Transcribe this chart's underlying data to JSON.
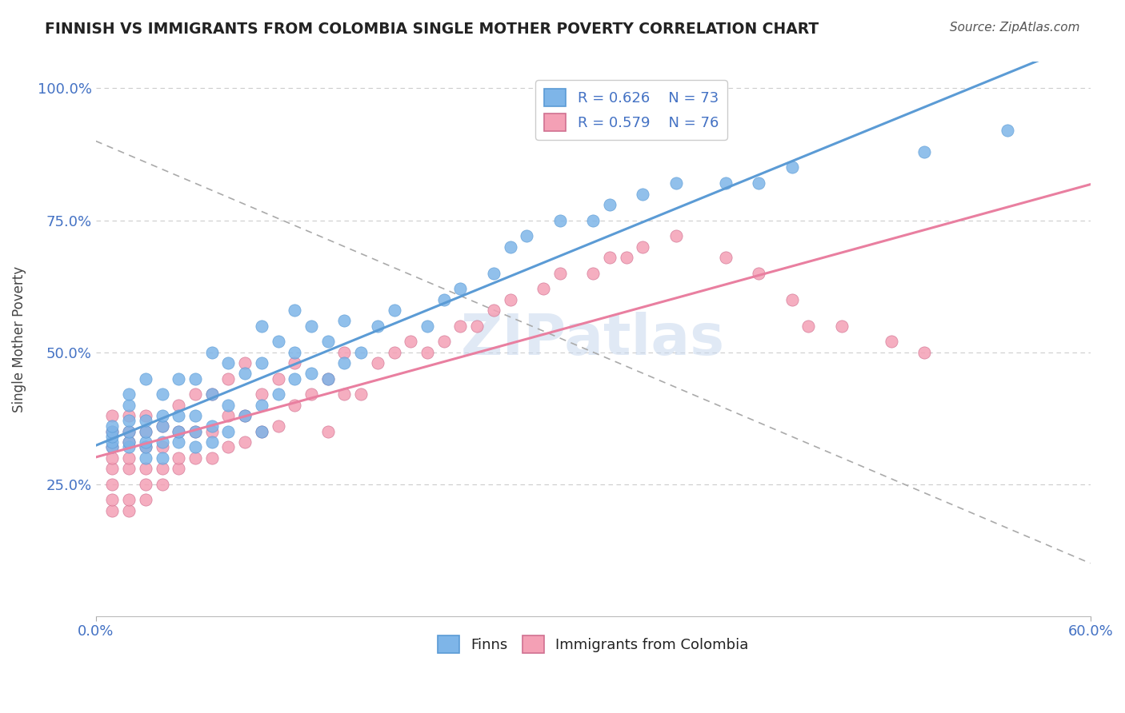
{
  "title": "FINNISH VS IMMIGRANTS FROM COLOMBIA SINGLE MOTHER POVERTY CORRELATION CHART",
  "source": "Source: ZipAtlas.com",
  "xlabel": "",
  "ylabel": "Single Mother Poverty",
  "xlim": [
    0.0,
    0.6
  ],
  "ylim": [
    0.0,
    1.05
  ],
  "xtick_labels": [
    "0.0%",
    "60.0%"
  ],
  "ytick_labels": [
    "25.0%",
    "50.0%",
    "75.0%",
    "100.0%"
  ],
  "ytick_values": [
    0.25,
    0.5,
    0.75,
    1.0
  ],
  "legend_R_finns": "R = 0.626",
  "legend_N_finns": "N = 73",
  "legend_R_colombia": "R = 0.579",
  "legend_N_colombia": "N = 76",
  "color_finns": "#7EB5E8",
  "color_colombia": "#F4A0B5",
  "color_finns_line": "#5B9BD5",
  "color_colombia_line": "#E97FA0",
  "color_dashed": "#AAAAAA",
  "watermark": "ZIPatlas",
  "finns_x": [
    0.01,
    0.01,
    0.01,
    0.01,
    0.01,
    0.02,
    0.02,
    0.02,
    0.02,
    0.02,
    0.02,
    0.03,
    0.03,
    0.03,
    0.03,
    0.03,
    0.03,
    0.04,
    0.04,
    0.04,
    0.04,
    0.04,
    0.05,
    0.05,
    0.05,
    0.05,
    0.06,
    0.06,
    0.06,
    0.06,
    0.07,
    0.07,
    0.07,
    0.07,
    0.08,
    0.08,
    0.08,
    0.09,
    0.09,
    0.1,
    0.1,
    0.1,
    0.1,
    0.11,
    0.11,
    0.12,
    0.12,
    0.12,
    0.13,
    0.13,
    0.14,
    0.14,
    0.15,
    0.15,
    0.16,
    0.17,
    0.18,
    0.2,
    0.21,
    0.22,
    0.24,
    0.25,
    0.26,
    0.28,
    0.3,
    0.31,
    0.33,
    0.35,
    0.38,
    0.4,
    0.42,
    0.5,
    0.55
  ],
  "finns_y": [
    0.32,
    0.33,
    0.34,
    0.35,
    0.36,
    0.32,
    0.33,
    0.35,
    0.37,
    0.4,
    0.42,
    0.3,
    0.32,
    0.33,
    0.35,
    0.37,
    0.45,
    0.3,
    0.33,
    0.36,
    0.38,
    0.42,
    0.33,
    0.35,
    0.38,
    0.45,
    0.32,
    0.35,
    0.38,
    0.45,
    0.33,
    0.36,
    0.42,
    0.5,
    0.35,
    0.4,
    0.48,
    0.38,
    0.46,
    0.35,
    0.4,
    0.48,
    0.55,
    0.42,
    0.52,
    0.45,
    0.5,
    0.58,
    0.46,
    0.55,
    0.45,
    0.52,
    0.48,
    0.56,
    0.5,
    0.55,
    0.58,
    0.55,
    0.6,
    0.62,
    0.65,
    0.7,
    0.72,
    0.75,
    0.75,
    0.78,
    0.8,
    0.82,
    0.82,
    0.82,
    0.85,
    0.88,
    0.92
  ],
  "colombia_x": [
    0.01,
    0.01,
    0.01,
    0.01,
    0.01,
    0.01,
    0.01,
    0.01,
    0.02,
    0.02,
    0.02,
    0.02,
    0.02,
    0.02,
    0.02,
    0.03,
    0.03,
    0.03,
    0.03,
    0.03,
    0.03,
    0.04,
    0.04,
    0.04,
    0.04,
    0.05,
    0.05,
    0.05,
    0.05,
    0.06,
    0.06,
    0.06,
    0.07,
    0.07,
    0.07,
    0.08,
    0.08,
    0.08,
    0.09,
    0.09,
    0.09,
    0.1,
    0.1,
    0.11,
    0.11,
    0.12,
    0.12,
    0.13,
    0.14,
    0.14,
    0.15,
    0.15,
    0.16,
    0.17,
    0.18,
    0.19,
    0.2,
    0.21,
    0.22,
    0.23,
    0.24,
    0.25,
    0.27,
    0.28,
    0.3,
    0.31,
    0.32,
    0.33,
    0.35,
    0.38,
    0.4,
    0.42,
    0.43,
    0.45,
    0.48,
    0.5
  ],
  "colombia_y": [
    0.2,
    0.22,
    0.25,
    0.28,
    0.3,
    0.32,
    0.35,
    0.38,
    0.2,
    0.22,
    0.28,
    0.3,
    0.33,
    0.35,
    0.38,
    0.22,
    0.25,
    0.28,
    0.32,
    0.35,
    0.38,
    0.25,
    0.28,
    0.32,
    0.36,
    0.28,
    0.3,
    0.35,
    0.4,
    0.3,
    0.35,
    0.42,
    0.3,
    0.35,
    0.42,
    0.32,
    0.38,
    0.45,
    0.33,
    0.38,
    0.48,
    0.35,
    0.42,
    0.36,
    0.45,
    0.4,
    0.48,
    0.42,
    0.35,
    0.45,
    0.42,
    0.5,
    0.42,
    0.48,
    0.5,
    0.52,
    0.5,
    0.52,
    0.55,
    0.55,
    0.58,
    0.6,
    0.62,
    0.65,
    0.65,
    0.68,
    0.68,
    0.7,
    0.72,
    0.68,
    0.65,
    0.6,
    0.55,
    0.55,
    0.52,
    0.5
  ]
}
